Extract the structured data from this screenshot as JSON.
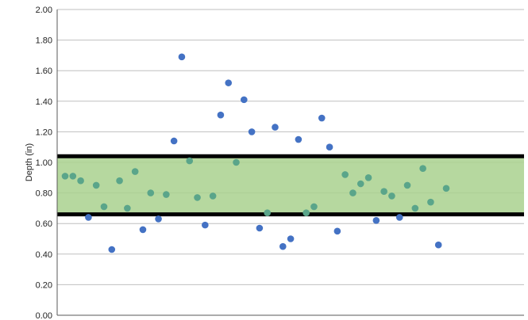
{
  "chart_data": {
    "type": "scatter",
    "title": "",
    "xlabel": "",
    "ylabel": "Depth (in)",
    "ylim": [
      0,
      2
    ],
    "yticks": [
      "0.00",
      "0.20",
      "0.40",
      "0.60",
      "0.80",
      "1.00",
      "1.20",
      "1.40",
      "1.60",
      "1.80",
      "2.00"
    ],
    "grid": true,
    "legend": "none",
    "band": {
      "lower": 0.66,
      "upper": 1.04
    },
    "x": [
      1,
      2,
      3,
      4,
      5,
      6,
      7,
      8,
      9,
      10,
      11,
      12,
      13,
      14,
      15,
      16,
      17,
      18,
      19,
      20,
      21,
      22,
      23,
      24,
      25,
      26,
      27,
      28,
      29,
      30,
      31,
      32,
      33,
      34,
      35,
      36,
      37,
      38,
      39,
      40,
      41,
      42,
      43,
      44,
      45,
      46,
      47,
      48,
      49,
      50
    ],
    "values": [
      0.91,
      0.91,
      0.88,
      0.64,
      0.85,
      0.71,
      0.43,
      0.88,
      0.7,
      0.94,
      0.56,
      0.8,
      0.63,
      0.79,
      1.14,
      1.69,
      1.01,
      0.77,
      0.59,
      0.78,
      1.31,
      1.52,
      1.0,
      1.41,
      1.2,
      0.57,
      0.67,
      1.23,
      0.45,
      0.5,
      1.15,
      0.67,
      0.71,
      1.29,
      1.1,
      0.55,
      0.92,
      0.8,
      0.86,
      0.9,
      0.62,
      0.81,
      0.78,
      0.64,
      0.85,
      0.7,
      0.96,
      0.74,
      0.46,
      0.83
    ]
  },
  "colors": {
    "band_fill": "#a9d18e",
    "band_border": "#000000",
    "point_outside": "#4472c4",
    "point_inside": "#5aa58a",
    "gridline": "#bfbfbf",
    "axis": "#595959"
  }
}
